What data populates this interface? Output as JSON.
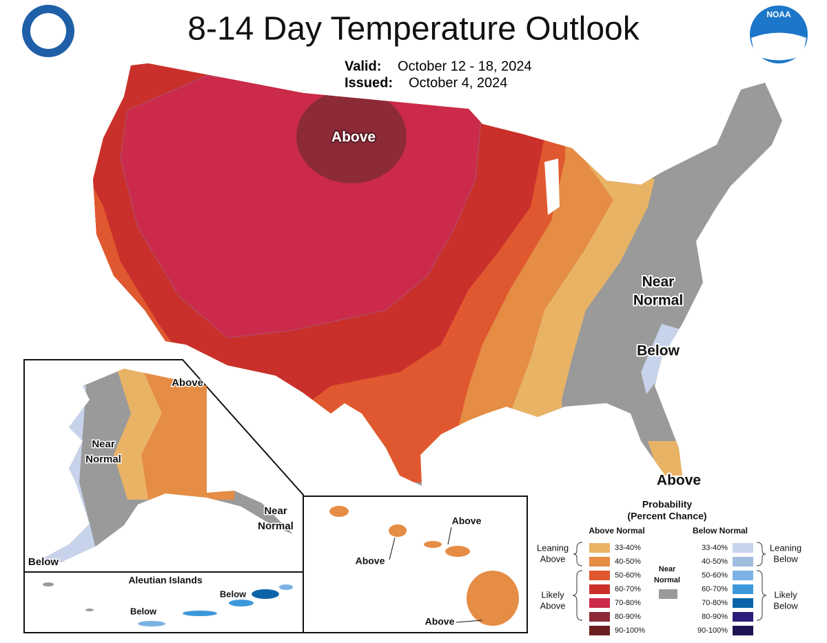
{
  "header": {
    "title": "8-14 Day Temperature Outlook",
    "valid_label": "Valid:",
    "valid_date": "October 12 - 18, 2024",
    "issued_label": "Issued:",
    "issued_date": "October 4, 2024",
    "logo": "NOAA"
  },
  "map": {
    "conus_labels": [
      [
        "Above"
      ],
      [
        "Near",
        "Normal"
      ],
      [
        "Below"
      ],
      [
        "Above"
      ]
    ],
    "alaska_labels": [
      [
        "Above"
      ],
      [
        "Near",
        "Normal"
      ],
      [
        "Near",
        "Normal"
      ],
      [
        "Below"
      ]
    ],
    "aleutian_title": "Aleutian Islands",
    "aleutian_labels": [
      [
        "Below"
      ],
      [
        "Below"
      ]
    ],
    "hawaii_labels": [
      [
        "Above"
      ],
      [
        "Above"
      ],
      [
        "Above"
      ]
    ]
  },
  "legend": {
    "title": [
      "Probability",
      "(Percent Chance)"
    ],
    "above_heading": "Above Normal",
    "below_heading": "Below Normal",
    "near": {
      "label": [
        "Near",
        "Normal"
      ],
      "color": "#9a9a9a"
    },
    "above": {
      "leaning": [
        "Leaning",
        "Above"
      ],
      "likely": [
        "Likely",
        "Above"
      ],
      "ranges": [
        {
          "label": "33-40%",
          "color": "#e9b366"
        },
        {
          "label": "40-50%",
          "color": "#e58c45"
        },
        {
          "label": "50-60%",
          "color": "#e0582f"
        },
        {
          "label": "60-70%",
          "color": "#c9302b"
        },
        {
          "label": "70-80%",
          "color": "#cb2a4a"
        },
        {
          "label": "80-90%",
          "color": "#8c2a37"
        },
        {
          "label": "90-100%",
          "color": "#6b1e20"
        }
      ]
    },
    "below": {
      "leaning": [
        "Leaning",
        "Below"
      ],
      "likely": [
        "Likely",
        "Below"
      ],
      "ranges": [
        {
          "label": "33-40%",
          "color": "#c7d3ea"
        },
        {
          "label": "40-50%",
          "color": "#a0bde0"
        },
        {
          "label": "50-60%",
          "color": "#7ab3e3"
        },
        {
          "label": "60-70%",
          "color": "#3d98db"
        },
        {
          "label": "70-80%",
          "color": "#0c63a8"
        },
        {
          "label": "80-90%",
          "color": "#2b1d7a"
        },
        {
          "label": "90-100%",
          "color": "#1d1552"
        }
      ]
    }
  }
}
